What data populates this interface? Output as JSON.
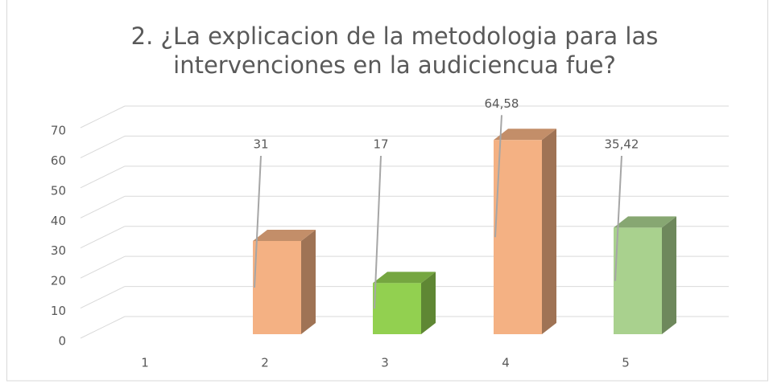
{
  "chart_data": {
    "type": "bar3d",
    "title": [
      "2. ¿La explicacion de la metodologia para las",
      "intervenciones en la audiciencua fue?"
    ],
    "categories": [
      "1",
      "2",
      "3",
      "4",
      "5"
    ],
    "values": [
      null,
      31,
      17,
      64.58,
      35.42
    ],
    "value_labels": [
      null,
      "31",
      "17",
      "64,58",
      "35,42"
    ],
    "colors": [
      "#f4b183",
      "#f4b183",
      "#92d050",
      "#f4b183",
      "#a9d18e"
    ],
    "ylim": [
      0,
      70
    ],
    "yticks": [
      0,
      10,
      20,
      30,
      40,
      50,
      60,
      70
    ],
    "grid": true
  }
}
